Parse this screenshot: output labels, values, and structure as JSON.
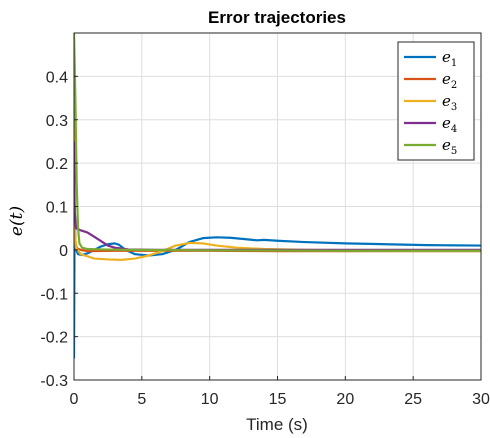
{
  "chart_data": {
    "type": "line",
    "title": "Error trajectories",
    "xlabel": "Time (s)",
    "ylabel": "e(t)",
    "xlim": [
      0,
      30
    ],
    "ylim": [
      -0.3,
      0.5
    ],
    "xticks": [
      0,
      5,
      10,
      15,
      20,
      25,
      30
    ],
    "yticks": [
      -0.3,
      -0.2,
      -0.1,
      0,
      0.1,
      0.2,
      0.3,
      0.4
    ],
    "xtick_labels": [
      "0",
      "5",
      "10",
      "15",
      "20",
      "25",
      "30"
    ],
    "ytick_labels": [
      "-0.3",
      "-0.2",
      "-0.1",
      "0",
      "0.1",
      "0.2",
      "0.3",
      "0.4"
    ],
    "grid": true,
    "legend_position": "top-right",
    "series": [
      {
        "name": "e1",
        "base": "e",
        "sub": "1",
        "color": "#0072BD",
        "points": [
          [
            0,
            -0.25
          ],
          [
            0.05,
            0.1
          ],
          [
            0.1,
            0.005
          ],
          [
            0.3,
            -0.01
          ],
          [
            0.6,
            -0.012
          ],
          [
            1.0,
            -0.008
          ],
          [
            1.5,
            0.0
          ],
          [
            2.0,
            0.008
          ],
          [
            2.5,
            0.013
          ],
          [
            3.0,
            0.015
          ],
          [
            3.3,
            0.012
          ],
          [
            3.8,
            0.0
          ],
          [
            4.5,
            -0.01
          ],
          [
            5.5,
            -0.013
          ],
          [
            6.5,
            -0.01
          ],
          [
            7.5,
            0.0
          ],
          [
            8.5,
            0.018
          ],
          [
            9.5,
            0.027
          ],
          [
            10.5,
            0.029
          ],
          [
            11.5,
            0.028
          ],
          [
            12.5,
            0.025
          ],
          [
            13.5,
            0.022
          ],
          [
            14,
            0.023
          ],
          [
            15,
            0.021
          ],
          [
            17,
            0.018
          ],
          [
            20,
            0.015
          ],
          [
            23,
            0.013
          ],
          [
            26,
            0.011
          ],
          [
            30,
            0.01
          ]
        ]
      },
      {
        "name": "e2",
        "base": "e",
        "sub": "2",
        "color": "#D95319",
        "points": [
          [
            0,
            0.1
          ],
          [
            0.1,
            0.02
          ],
          [
            0.2,
            0.004
          ],
          [
            0.5,
            0.0
          ],
          [
            1.0,
            -0.003
          ],
          [
            3,
            -0.002
          ],
          [
            6,
            -0.002
          ],
          [
            10,
            -0.002
          ],
          [
            15,
            -0.003
          ],
          [
            20,
            -0.003
          ],
          [
            30,
            -0.003
          ]
        ]
      },
      {
        "name": "e3",
        "base": "e",
        "sub": "3",
        "color": "#EDB120",
        "points": [
          [
            0,
            0.3
          ],
          [
            0.05,
            0.05
          ],
          [
            0.15,
            0.005
          ],
          [
            0.5,
            -0.01
          ],
          [
            1.0,
            -0.015
          ],
          [
            1.5,
            -0.02
          ],
          [
            2.5,
            -0.022
          ],
          [
            3.5,
            -0.023
          ],
          [
            4.5,
            -0.02
          ],
          [
            5.5,
            -0.013
          ],
          [
            6.5,
            -0.003
          ],
          [
            7.5,
            0.01
          ],
          [
            8.5,
            0.016
          ],
          [
            9.5,
            0.015
          ],
          [
            10.5,
            0.01
          ],
          [
            12,
            0.005
          ],
          [
            14,
            0.002
          ],
          [
            17,
            0.0
          ],
          [
            20,
            -0.001
          ],
          [
            25,
            -0.002
          ],
          [
            30,
            -0.002
          ]
        ]
      },
      {
        "name": "e4",
        "base": "e",
        "sub": "4",
        "color": "#7E2F8E",
        "points": [
          [
            0,
            0.25
          ],
          [
            0.05,
            0.09
          ],
          [
            0.15,
            0.05
          ],
          [
            0.5,
            0.045
          ],
          [
            1.0,
            0.04
          ],
          [
            1.5,
            0.03
          ],
          [
            2.0,
            0.02
          ],
          [
            2.5,
            0.01
          ],
          [
            3.0,
            0.005
          ],
          [
            4.0,
            0.001
          ],
          [
            6.0,
            0.0
          ],
          [
            10,
            0.0
          ],
          [
            15,
            0.0
          ],
          [
            20,
            0.0
          ],
          [
            30,
            0.0
          ]
        ]
      },
      {
        "name": "e5",
        "base": "e",
        "sub": "5",
        "color": "#77AC30",
        "points": [
          [
            0,
            0.5
          ],
          [
            0.1,
            0.35
          ],
          [
            0.2,
            0.15
          ],
          [
            0.3,
            0.05
          ],
          [
            0.4,
            0.015
          ],
          [
            0.6,
            0.005
          ],
          [
            1.0,
            0.002
          ],
          [
            2.0,
            0.001
          ],
          [
            4.0,
            0.0
          ],
          [
            10,
            -0.001
          ],
          [
            20,
            -0.002
          ],
          [
            30,
            -0.002
          ]
        ]
      }
    ]
  }
}
